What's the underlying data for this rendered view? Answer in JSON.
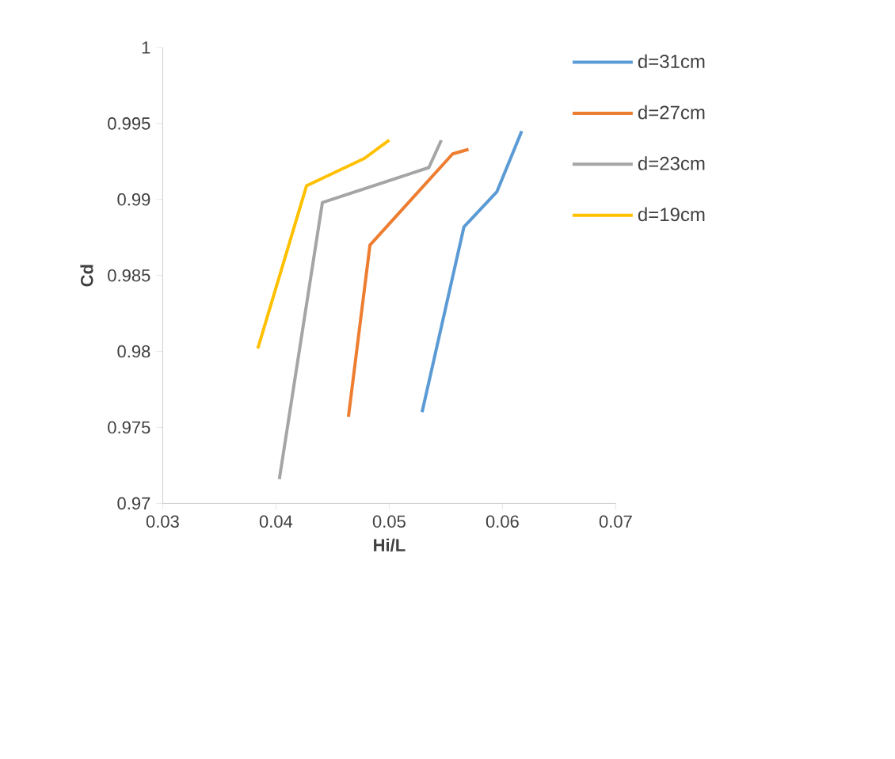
{
  "chart_data": {
    "type": "line",
    "xlabel": "Hi/L",
    "ylabel": "Cd",
    "xlim": [
      0.03,
      0.07
    ],
    "xticks": [
      0.03,
      0.04,
      0.05,
      0.06,
      0.07
    ],
    "ylim": [
      0.97,
      1
    ],
    "yticks": [
      0.97,
      0.975,
      0.98,
      0.985,
      0.99,
      0.995,
      1
    ],
    "grid": false,
    "legend": "top right",
    "marker": "none",
    "line_style": "solid",
    "series": [
      {
        "name": "d=31cm",
        "color": "#5b9bd5",
        "x": [
          0.0529,
          0.0566,
          0.0595,
          0.0617
        ],
        "values": [
          0.976,
          0.9882,
          0.9905,
          0.9945
        ]
      },
      {
        "name": "d=27cm",
        "color": "#ed7d31",
        "x": [
          0.0464,
          0.0483,
          0.0556,
          0.057
        ],
        "values": [
          0.9757,
          0.987,
          0.993,
          0.9933
        ]
      },
      {
        "name": "d=23cm",
        "color": "#a5a5a5",
        "x": [
          0.0403,
          0.0441,
          0.0535,
          0.0546
        ],
        "values": [
          0.9716,
          0.9898,
          0.9921,
          0.9939
        ]
      },
      {
        "name": "d=19cm",
        "color": "#ffc000",
        "x": [
          0.0384,
          0.0427,
          0.0478,
          0.05
        ],
        "values": [
          0.9802,
          0.9909,
          0.9927,
          0.9939
        ]
      }
    ]
  }
}
